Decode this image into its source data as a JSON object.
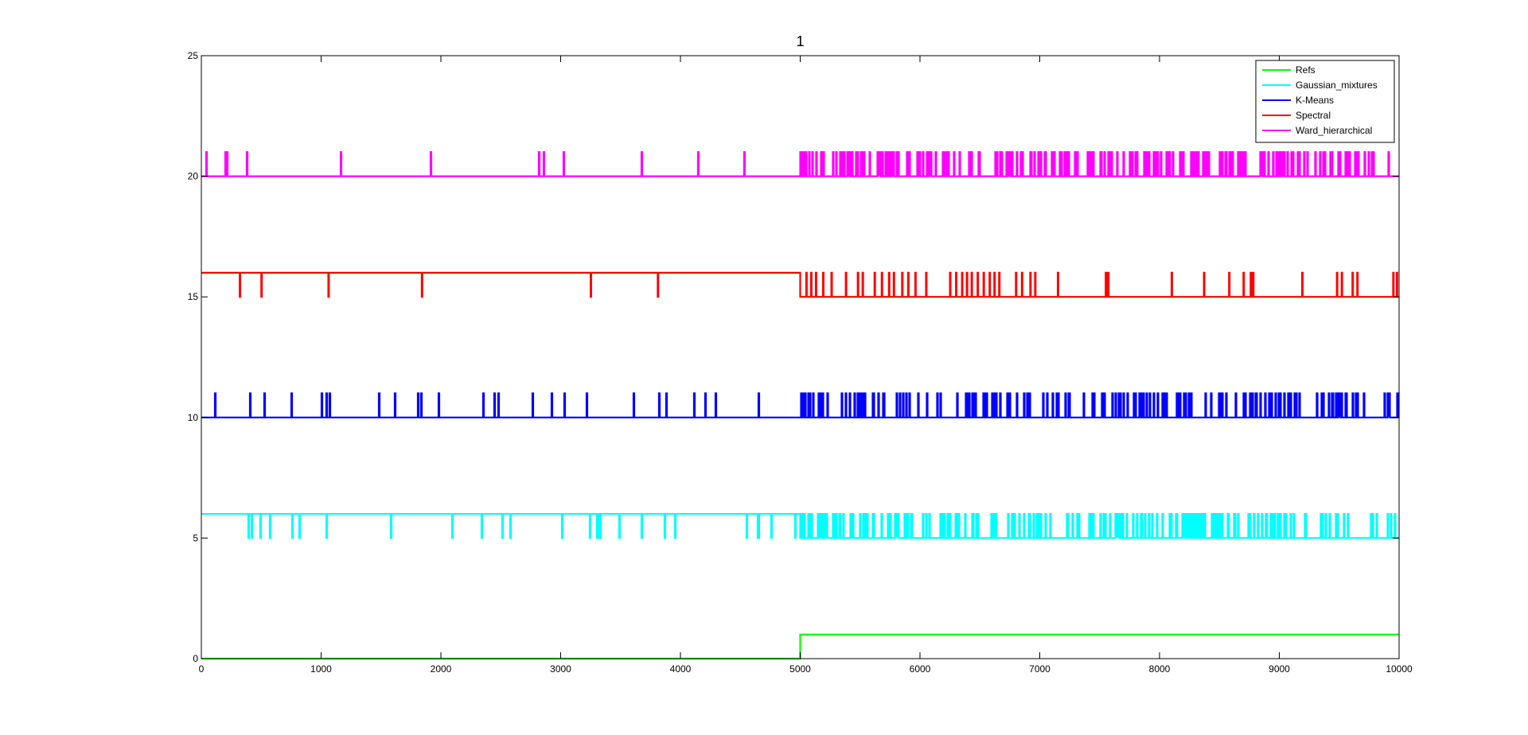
{
  "chart_data": {
    "type": "line",
    "title": "1",
    "xlabel": "",
    "ylabel": "",
    "xlim": [
      0,
      10000
    ],
    "ylim": [
      0,
      25
    ],
    "x_ticks": [
      0,
      1000,
      2000,
      3000,
      4000,
      5000,
      6000,
      7000,
      8000,
      9000,
      10000
    ],
    "y_ticks": [
      0,
      5,
      10,
      15,
      20,
      25
    ],
    "x_tick_labels": [
      "0",
      "1000",
      "2000",
      "3000",
      "4000",
      "5000",
      "6000",
      "7000",
      "8000",
      "9000",
      "10000"
    ],
    "y_tick_labels": [
      "0",
      "5",
      "10",
      "15",
      "20",
      "25"
    ],
    "grid": false,
    "legend_position": "top-right",
    "series": [
      {
        "name": "Refs",
        "color": "#00ff00",
        "pattern": "step",
        "segments": [
          {
            "x_start": 0,
            "x_end": 5000,
            "value": 0
          },
          {
            "x_start": 5000,
            "x_end": 10000,
            "value": 1
          }
        ]
      },
      {
        "name": "Gaussian_mixtures",
        "color": "#00ffff",
        "pattern": "binary-switching",
        "levels": [
          5,
          6
        ],
        "segments": [
          {
            "x_start": 0,
            "x_end": 5000,
            "base": 6,
            "alt": 5,
            "switch_rate": "sparse"
          },
          {
            "x_start": 5000,
            "x_end": 10000,
            "base": 5,
            "alt": 6,
            "switch_rate": "dense"
          }
        ]
      },
      {
        "name": "K-Means",
        "color": "#0000ff",
        "pattern": "binary-switching",
        "levels": [
          10,
          11
        ],
        "segments": [
          {
            "x_start": 0,
            "x_end": 5000,
            "base": 10,
            "alt": 11,
            "switch_rate": "sparse"
          },
          {
            "x_start": 5000,
            "x_end": 10000,
            "base": 10,
            "alt": 11,
            "switch_rate": "dense"
          }
        ]
      },
      {
        "name": "Spectral",
        "color": "#ff0000",
        "pattern": "binary-switching",
        "levels": [
          15,
          16
        ],
        "segments": [
          {
            "x_start": 0,
            "x_end": 5000,
            "base": 16,
            "alt": 15,
            "switch_rate": "rare"
          },
          {
            "x_start": 5000,
            "x_end": 10000,
            "base": 15,
            "alt": 16,
            "switch_rate": "moderate"
          }
        ]
      },
      {
        "name": "Ward_hierarchical",
        "color": "#ff00ff",
        "pattern": "binary-switching",
        "levels": [
          20,
          21
        ],
        "segments": [
          {
            "x_start": 0,
            "x_end": 5000,
            "base": 20,
            "alt": 21,
            "switch_rate": "sparse"
          },
          {
            "x_start": 5000,
            "x_end": 10000,
            "base": 20,
            "alt": 21,
            "switch_rate": "dense"
          }
        ]
      }
    ],
    "spike_positions": {
      "Spectral_first_half": [
        320,
        500,
        1060,
        1840,
        3250,
        3810
      ],
      "Spectral_second_half": [
        5050,
        5090,
        5130,
        5190,
        5260,
        5380,
        5480,
        5520,
        5620,
        5680,
        5740,
        5780,
        5850,
        5900,
        5960,
        6050,
        6250,
        6300,
        6350,
        6390,
        6430,
        6480,
        6530,
        6580,
        6620,
        6660,
        6800,
        6850,
        6920,
        6960,
        7150,
        7550,
        7570,
        8100,
        8370,
        8580,
        8700,
        8760,
        8780,
        9190,
        9480,
        9520,
        9610,
        9650,
        9950,
        9980
      ]
    }
  }
}
